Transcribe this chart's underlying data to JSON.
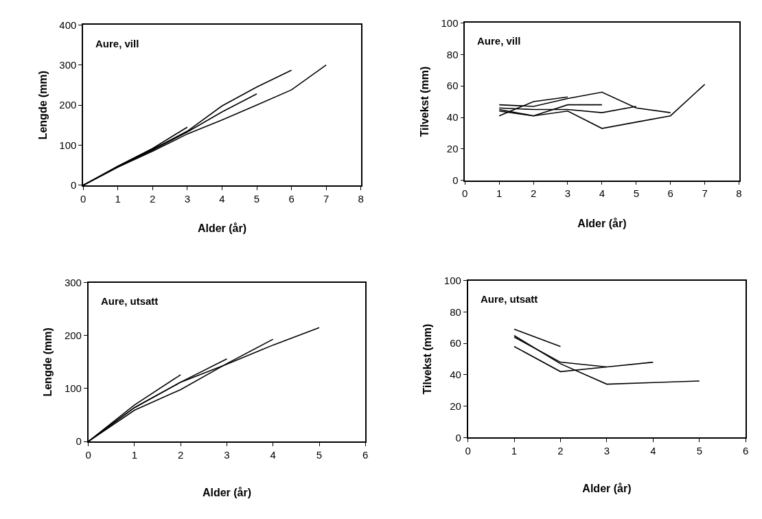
{
  "chart_data": [
    {
      "type": "line",
      "title": "Aure, vill",
      "xlabel": "Alder (år)",
      "ylabel": "Lengde (mm)",
      "xlim": [
        0,
        8
      ],
      "xticks": [
        0,
        1,
        2,
        3,
        4,
        5,
        6,
        7,
        8
      ],
      "ylim": [
        0,
        400
      ],
      "yticks": [
        0,
        100,
        200,
        300,
        400
      ],
      "marker": "none",
      "line_style": "solid",
      "series": [
        {
          "color": "#000000",
          "x": [
            0,
            1,
            2,
            3,
            4,
            5,
            6,
            7
          ],
          "values": [
            0,
            45,
            85,
            128,
            163,
            200,
            238,
            300
          ]
        },
        {
          "color": "#000000",
          "x": [
            0,
            1,
            2,
            3,
            4,
            5,
            6
          ],
          "values": [
            0,
            47,
            90,
            135,
            198,
            245,
            287
          ]
        },
        {
          "color": "#000000",
          "x": [
            0,
            1,
            2,
            3,
            4,
            5
          ],
          "values": [
            0,
            46,
            88,
            133,
            183,
            228
          ]
        },
        {
          "color": "#000000",
          "x": [
            0,
            1,
            2,
            3
          ],
          "values": [
            0,
            48,
            92,
            145
          ]
        }
      ]
    },
    {
      "type": "line",
      "title": "Aure, vill",
      "xlabel": "Alder (år)",
      "ylabel": "Tilvekst (mm)",
      "xlim": [
        0,
        8
      ],
      "xticks": [
        0,
        1,
        2,
        3,
        4,
        5,
        6,
        7,
        8
      ],
      "ylim": [
        0,
        100
      ],
      "yticks": [
        0,
        20,
        40,
        60,
        80,
        100
      ],
      "marker": "none",
      "line_style": "solid",
      "series": [
        {
          "color": "#000000",
          "x": [
            1,
            2,
            3,
            4,
            5,
            6,
            7
          ],
          "values": [
            45,
            41,
            44,
            33,
            37,
            41,
            61
          ]
        },
        {
          "color": "#000000",
          "x": [
            1,
            2,
            3,
            4,
            5,
            6
          ],
          "values": [
            48,
            47,
            52,
            56,
            46,
            43
          ]
        },
        {
          "color": "#000000",
          "x": [
            1,
            2,
            3,
            4,
            5
          ],
          "values": [
            46,
            45,
            45,
            43,
            47
          ]
        },
        {
          "color": "#000000",
          "x": [
            1,
            2,
            3,
            4
          ],
          "values": [
            44,
            41,
            48,
            48
          ]
        },
        {
          "color": "#000000",
          "x": [
            1,
            2,
            3
          ],
          "values": [
            41,
            50,
            53
          ]
        }
      ]
    },
    {
      "type": "line",
      "title": "Aure, utsatt",
      "xlabel": "Alder (år)",
      "ylabel": "Lengde (mm)",
      "xlim": [
        0,
        6
      ],
      "xticks": [
        0,
        1,
        2,
        3,
        4,
        5,
        6
      ],
      "ylim": [
        0,
        300
      ],
      "yticks": [
        0,
        100,
        200,
        300
      ],
      "marker": "none",
      "line_style": "solid",
      "series": [
        {
          "color": "#000000",
          "x": [
            0,
            1,
            2
          ],
          "values": [
            0,
            69,
            126
          ]
        },
        {
          "color": "#000000",
          "x": [
            0,
            1,
            2,
            3
          ],
          "values": [
            0,
            64,
            112,
            156
          ]
        },
        {
          "color": "#000000",
          "x": [
            0,
            1,
            2,
            3,
            4
          ],
          "values": [
            0,
            59,
            98,
            147,
            193
          ]
        },
        {
          "color": "#000000",
          "x": [
            0,
            1,
            2,
            3,
            4,
            5
          ],
          "values": [
            0,
            64,
            112,
            146,
            182,
            215
          ]
        }
      ]
    },
    {
      "type": "line",
      "title": "Aure, utsatt",
      "xlabel": "Alder (år)",
      "ylabel": "Tilvekst (mm)",
      "xlim": [
        0,
        6
      ],
      "xticks": [
        0,
        1,
        2,
        3,
        4,
        5,
        6
      ],
      "ylim": [
        0,
        100
      ],
      "yticks": [
        0,
        20,
        40,
        60,
        80,
        100
      ],
      "marker": "none",
      "line_style": "solid",
      "series": [
        {
          "color": "#000000",
          "x": [
            1,
            2
          ],
          "values": [
            69,
            58
          ]
        },
        {
          "color": "#000000",
          "x": [
            1,
            2,
            3,
            4
          ],
          "values": [
            64,
            48,
            45,
            48
          ]
        },
        {
          "color": "#000000",
          "x": [
            1,
            2,
            3,
            4,
            5
          ],
          "values": [
            65,
            47,
            34,
            35,
            36
          ]
        },
        {
          "color": "#000000",
          "x": [
            1,
            2,
            3
          ],
          "values": [
            58,
            42,
            45
          ]
        }
      ]
    }
  ]
}
